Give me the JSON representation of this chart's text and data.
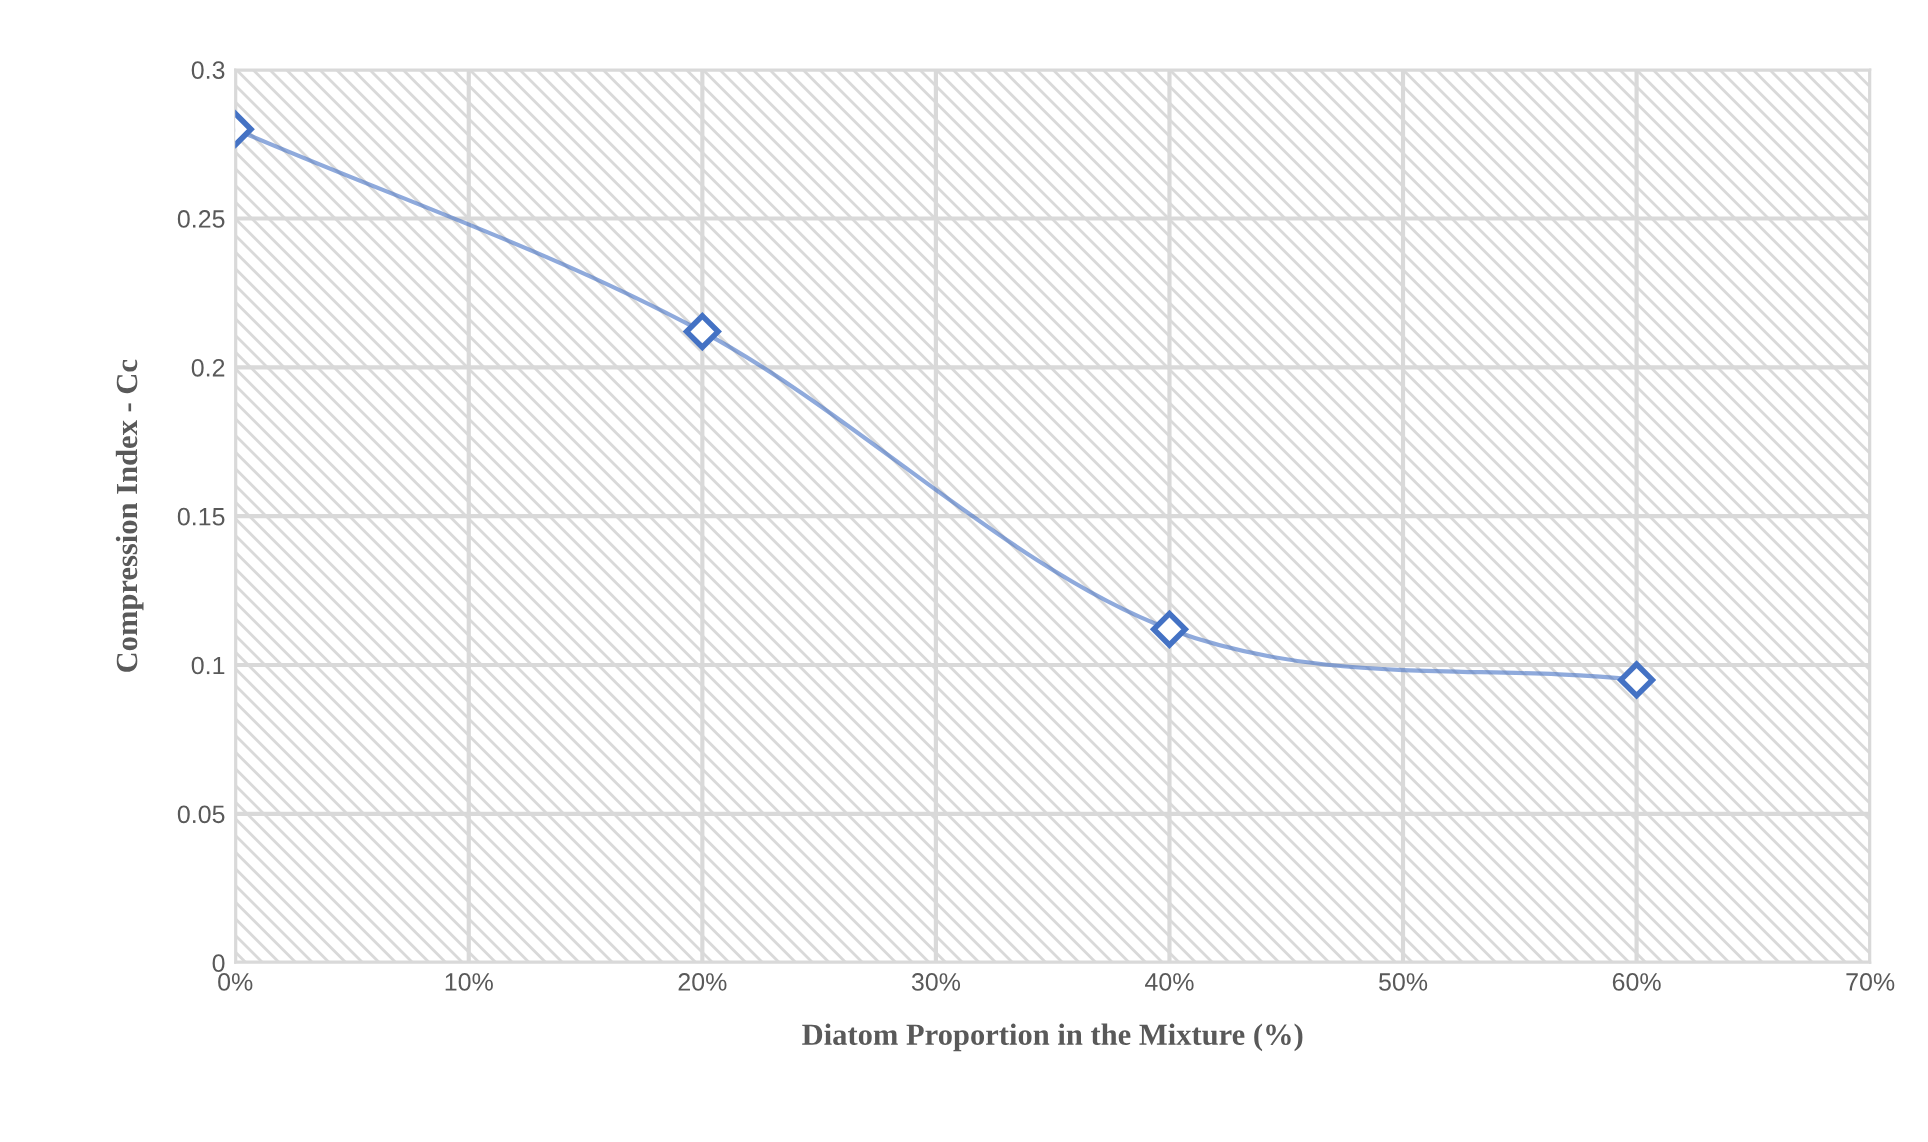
{
  "chart_data": {
    "type": "line",
    "xlabel": "Diatom Proportion in the Mixture (%)",
    "ylabel": "Compression Index - Cc",
    "x": [
      0,
      20,
      40,
      60
    ],
    "series": [
      {
        "color": "#4472c4",
        "values": [
          0.28,
          0.212,
          0.112,
          0.095
        ]
      }
    ],
    "marker": "diamond",
    "grid": true,
    "xlim": [
      0,
      70
    ],
    "xticks": [
      {
        "value": 0,
        "label": "0%"
      },
      {
        "value": 10,
        "label": "10%"
      },
      {
        "value": 20,
        "label": "20%"
      },
      {
        "value": 30,
        "label": "30%"
      },
      {
        "value": 40,
        "label": "40%"
      },
      {
        "value": 50,
        "label": "50%"
      },
      {
        "value": 60,
        "label": "60%"
      },
      {
        "value": 70,
        "label": "70%"
      }
    ],
    "ylim": [
      0,
      0.3
    ],
    "yticks": [
      0,
      0.05,
      0.1,
      0.15,
      0.2,
      0.25,
      0.3
    ]
  }
}
